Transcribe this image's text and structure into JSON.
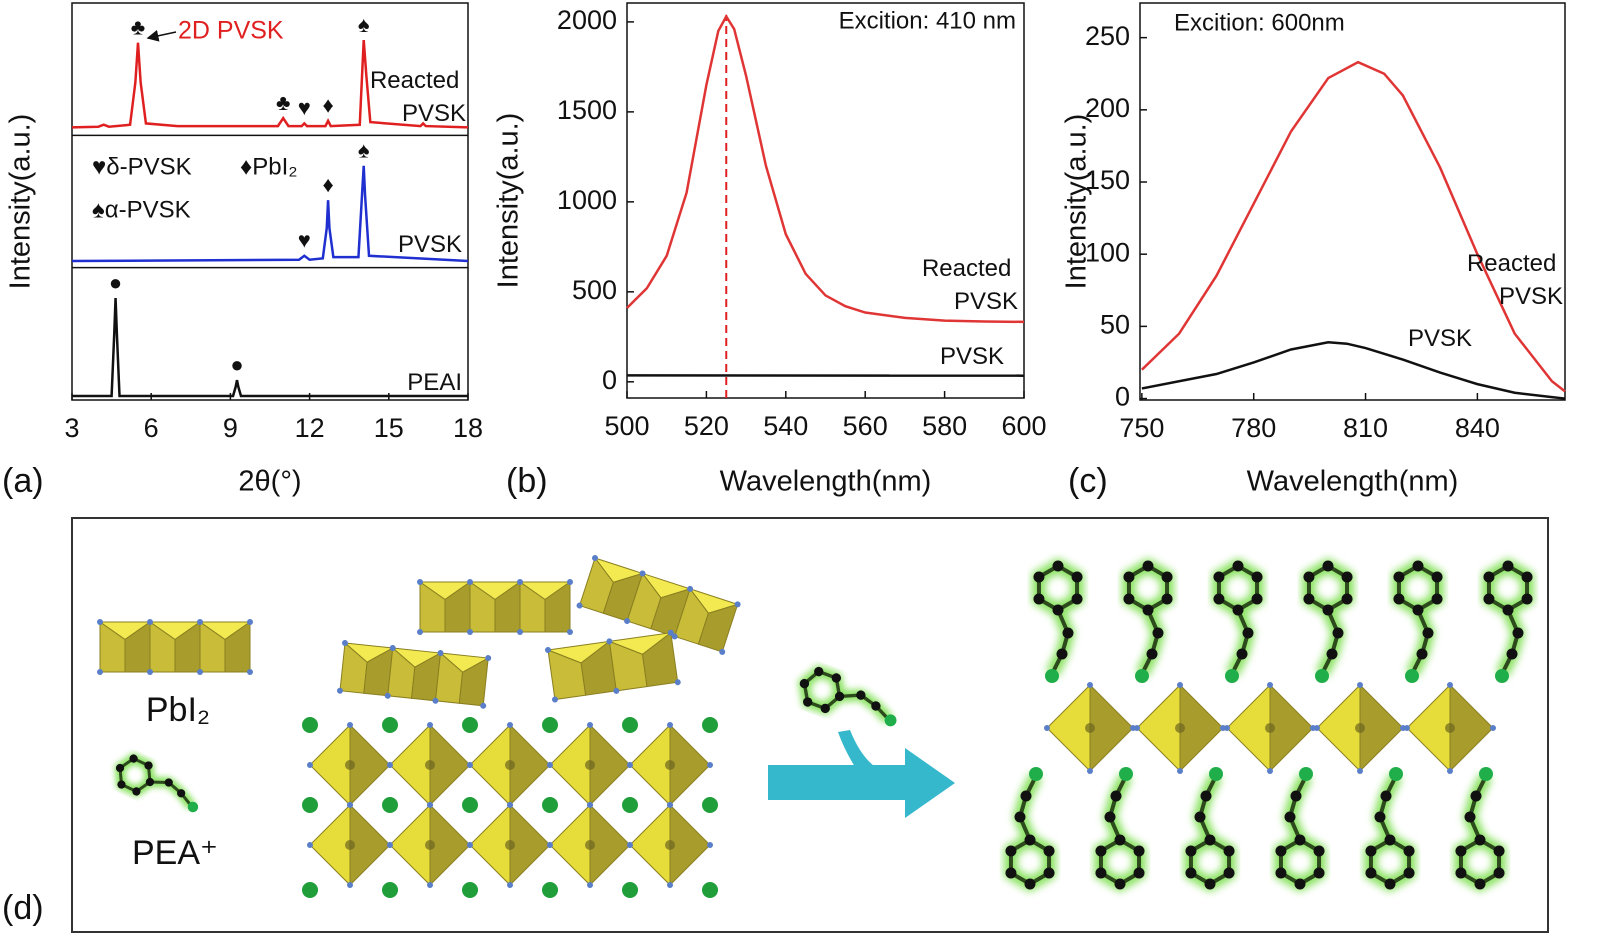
{
  "chart_data": [
    {
      "type": "line",
      "panel_label": "(a)",
      "x_label": "2θ(°)",
      "y_label": "Intensity(a.u.)",
      "xlim": [
        3,
        18
      ],
      "xticks": [
        3,
        6,
        9,
        12,
        15,
        18
      ],
      "ylim": [
        0,
        100
      ],
      "stacked_panels": true,
      "annotations": [
        "2D PVSK",
        "♥δ-PVSK",
        "♦PbI₂",
        "♠α-PVSK"
      ],
      "series": [
        {
          "name": "Reacted PVSK",
          "color": "#e02020",
          "x": [
            3,
            4,
            4.2,
            4.4,
            5.2,
            5.4,
            5.5,
            5.6,
            5.8,
            7,
            10.8,
            11,
            11.2,
            11.7,
            11.8,
            11.9,
            12.6,
            12.7,
            12.8,
            13.9,
            14.05,
            14.15,
            14.3,
            16.2,
            16.3,
            16.4,
            18
          ],
          "values": [
            6,
            6.5,
            8,
            6.5,
            8,
            40,
            70,
            40,
            9,
            7,
            7,
            13,
            7,
            7,
            9,
            7,
            7,
            11,
            7,
            8,
            72,
            45,
            10,
            7,
            9,
            7,
            6
          ],
          "markers": [
            {
              "label": "♣",
              "x": 5.5
            },
            {
              "label": "♣",
              "x": 11
            },
            {
              "label": "♥",
              "x": 11.8
            },
            {
              "label": "♦",
              "x": 12.7
            },
            {
              "label": "♠",
              "x": 14.05
            }
          ]
        },
        {
          "name": "PVSK",
          "color": "#1f2fd0",
          "x": [
            3,
            11.6,
            11.8,
            12,
            12.5,
            12.65,
            12.7,
            12.75,
            12.9,
            13.85,
            14,
            14.05,
            14.1,
            14.25,
            18
          ],
          "values": [
            5,
            6,
            9,
            6,
            7,
            30,
            51,
            30,
            8,
            8,
            60,
            77,
            55,
            9,
            5
          ],
          "markers": [
            {
              "label": "♥",
              "x": 11.8
            },
            {
              "label": "♦",
              "x": 12.7
            },
            {
              "label": "♠",
              "x": 14.05
            }
          ]
        },
        {
          "name": "PEAI",
          "color": "#111111",
          "x": [
            3,
            4.5,
            4.6,
            4.65,
            4.7,
            4.8,
            9.1,
            9.2,
            9.25,
            9.3,
            9.4,
            18
          ],
          "values": [
            3,
            3,
            50,
            77,
            50,
            3,
            3,
            10,
            15,
            10,
            3,
            3
          ],
          "markers": [
            {
              "label": "●",
              "x": 4.65
            },
            {
              "label": "●",
              "x": 9.25
            }
          ]
        }
      ]
    },
    {
      "type": "line",
      "panel_label": "(b)",
      "x_label": "Wavelength(nm)",
      "y_label": "Intensity(a.u.)",
      "xlim": [
        500,
        600
      ],
      "xticks": [
        500,
        520,
        540,
        560,
        580,
        600
      ],
      "ylim": [
        -90,
        2105
      ],
      "yticks": [
        0,
        500,
        1000,
        1500,
        2000
      ],
      "annotations": [
        "Excition: 410 nm"
      ],
      "vline": {
        "x": 525,
        "color": "#e02020"
      },
      "series": [
        {
          "name": "Reacted PVSK",
          "color": "#e03535",
          "x": [
            500,
            505,
            510,
            515,
            520,
            523,
            525,
            527,
            530,
            535,
            540,
            545,
            550,
            555,
            560,
            570,
            580,
            590,
            600
          ],
          "values": [
            410,
            520,
            700,
            1050,
            1650,
            1950,
            2030,
            1960,
            1700,
            1200,
            820,
            600,
            480,
            420,
            385,
            355,
            340,
            335,
            333
          ]
        },
        {
          "name": "PVSK",
          "color": "#111111",
          "x": [
            500,
            600
          ],
          "values": [
            36,
            34
          ]
        }
      ]
    },
    {
      "type": "line",
      "panel_label": "(c)",
      "x_label": "Wavelength(nm)",
      "y_label": "Intensity(a.u.)",
      "xlim": [
        749.5,
        863.5
      ],
      "xticks": [
        750,
        780,
        810,
        840
      ],
      "ylim": [
        -1,
        274
      ],
      "yticks": [
        0,
        50,
        100,
        150,
        200,
        250
      ],
      "annotations": [
        "Excition: 600nm"
      ],
      "series": [
        {
          "name": "Reacted PVSK",
          "color": "#e03535",
          "x": [
            750,
            760,
            770,
            780,
            790,
            800,
            808,
            815,
            820,
            830,
            840,
            850,
            860,
            863.5
          ],
          "values": [
            20,
            45,
            85,
            135,
            185,
            222,
            233,
            225,
            210,
            160,
            100,
            45,
            12,
            5
          ]
        },
        {
          "name": "PVSK",
          "color": "#111111",
          "x": [
            750,
            770,
            780,
            790,
            800,
            805,
            810,
            820,
            830,
            840,
            850,
            860,
            863.5
          ],
          "values": [
            7,
            17,
            25,
            34,
            39,
            38,
            35,
            27,
            18,
            10,
            4,
            1,
            0
          ]
        }
      ]
    }
  ],
  "diagram": {
    "panel_label": "(d)",
    "labels": [
      "PbI₂",
      "PEA⁺"
    ]
  }
}
